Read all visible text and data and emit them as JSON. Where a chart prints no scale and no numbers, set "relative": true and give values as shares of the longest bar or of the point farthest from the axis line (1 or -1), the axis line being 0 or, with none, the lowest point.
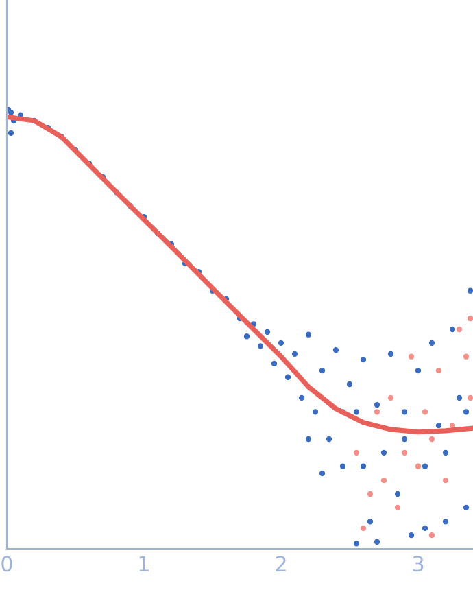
{
  "chart_data": {
    "type": "scatter",
    "relative": true,
    "xlim": [
      0,
      3.4
    ],
    "xticks": [
      0,
      1,
      2,
      3
    ],
    "grid": false,
    "legend": false,
    "marker": "circle",
    "tick_labels": "x",
    "series": [
      {
        "color": "#3a6bbf",
        "x": [
          0.01,
          0.03,
          0.05,
          0.03,
          0.1,
          0.2,
          0.3,
          0.4,
          0.5,
          0.6,
          0.7,
          0.8,
          0.9,
          1.0,
          1.1,
          1.2,
          1.3,
          1.4,
          1.5,
          1.6,
          1.7,
          1.75,
          1.8,
          1.85,
          1.9,
          1.95,
          2.0,
          2.05,
          2.1,
          2.15,
          2.2,
          2.25,
          2.3,
          2.35,
          2.4,
          2.45,
          2.5,
          2.55,
          2.6,
          2.65,
          2.7,
          2.75,
          2.8,
          2.85,
          2.9,
          2.95,
          3.0,
          3.05,
          3.1,
          3.15,
          3.2,
          3.25,
          3.3,
          3.35,
          3.38,
          2.55,
          2.7,
          3.05,
          2.2,
          2.3,
          2.45,
          2.6,
          2.9,
          3.2,
          3.35
        ],
        "values": [
          1.0,
          0.994,
          0.975,
          0.947,
          0.988,
          0.975,
          0.959,
          0.938,
          0.909,
          0.878,
          0.847,
          0.812,
          0.781,
          0.756,
          0.719,
          0.694,
          0.65,
          0.631,
          0.588,
          0.569,
          0.525,
          0.484,
          0.512,
          0.462,
          0.494,
          0.422,
          0.469,
          0.391,
          0.444,
          0.344,
          0.488,
          0.312,
          0.406,
          0.25,
          0.453,
          0.188,
          0.375,
          0.312,
          0.431,
          0.062,
          0.328,
          0.219,
          0.444,
          0.125,
          0.312,
          0.031,
          0.406,
          0.188,
          0.469,
          0.281,
          0.062,
          0.5,
          0.344,
          0.094,
          0.588,
          0.012,
          0.016,
          0.047,
          0.25,
          0.172,
          0.312,
          0.188,
          0.25,
          0.219,
          0.312
        ]
      },
      {
        "color": "#f4908a",
        "x": [
          2.55,
          2.6,
          2.7,
          2.75,
          2.8,
          2.85,
          2.9,
          2.95,
          3.0,
          3.05,
          3.1,
          3.15,
          3.2,
          3.25,
          3.3,
          3.35,
          3.38,
          3.38,
          2.65,
          3.1
        ],
        "values": [
          0.219,
          0.047,
          0.312,
          0.156,
          0.344,
          0.094,
          0.219,
          0.438,
          0.188,
          0.312,
          0.031,
          0.406,
          0.156,
          0.281,
          0.5,
          0.438,
          0.525,
          0.344,
          0.125,
          0.25
        ]
      },
      {
        "type": "line",
        "marker": "none",
        "color": "#e8605a",
        "x": [
          0,
          0.2,
          0.4,
          0.6,
          0.8,
          1.0,
          1.2,
          1.4,
          1.6,
          1.8,
          2.0,
          2.2,
          2.4,
          2.6,
          2.8,
          3.0,
          3.2,
          3.4
        ],
        "values": [
          0.984,
          0.975,
          0.938,
          0.875,
          0.812,
          0.75,
          0.688,
          0.625,
          0.562,
          0.5,
          0.438,
          0.369,
          0.319,
          0.288,
          0.272,
          0.266,
          0.269,
          0.275
        ]
      }
    ]
  }
}
